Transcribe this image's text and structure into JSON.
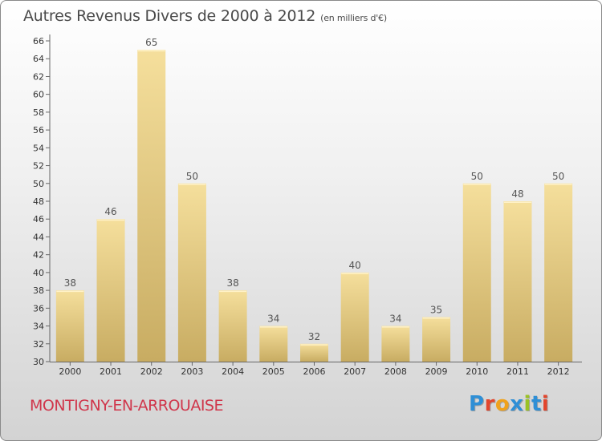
{
  "header": {
    "title": "Autres Revenus Divers de 2000 à 2012",
    "subtitle": "(en milliers d'€)"
  },
  "footer": {
    "town": "MONTIGNY-EN-ARROUAISE",
    "logo_letters": [
      "P",
      "r",
      "o",
      "x",
      "i",
      "t",
      "i"
    ],
    "logo_colors": [
      "#2e8fd6",
      "#e2452c",
      "#f0a21c",
      "#2e8fd6",
      "#9ac225",
      "#2e8fd6",
      "#e2452c"
    ]
  },
  "chart_data": {
    "type": "bar",
    "categories": [
      "2000",
      "2001",
      "2002",
      "2003",
      "2004",
      "2005",
      "2006",
      "2007",
      "2008",
      "2009",
      "2010",
      "2011",
      "2012"
    ],
    "values": [
      38,
      46,
      65,
      50,
      38,
      34,
      32,
      40,
      34,
      35,
      50,
      48,
      50
    ],
    "ylim": [
      30,
      66
    ],
    "yticks": [
      30,
      32,
      34,
      36,
      38,
      40,
      42,
      44,
      46,
      48,
      50,
      52,
      54,
      56,
      58,
      60,
      62,
      64,
      66
    ],
    "grid": false,
    "bar_color_light": "#f5df9c",
    "bar_color_dark": "#c8ac62"
  }
}
